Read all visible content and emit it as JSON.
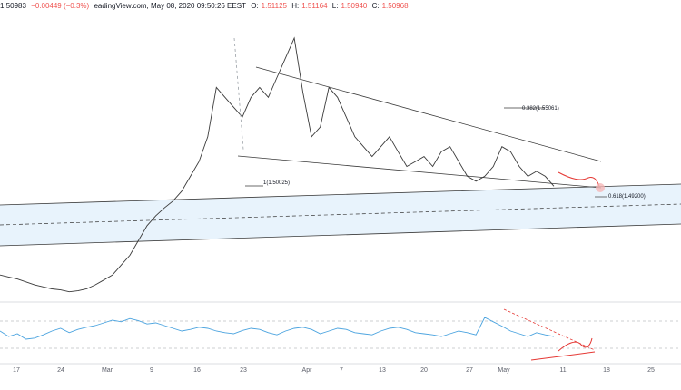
{
  "header": {
    "symbol_price": "1.50983",
    "change": "−0.00449 (−0.3%)",
    "source_time": "eadingView.com, May 08, 2020 09:50:26 EEST",
    "o_label": "O:",
    "o_value": "1.51125",
    "h_label": "H:",
    "h_value": "1.51164",
    "l_label": "L:",
    "l_value": "1.50940",
    "c_label": "C:",
    "c_value": "1.50968"
  },
  "annotations": {
    "fib_top": "0.382(1.55061)",
    "fib_level_one": "1(1.50025)",
    "fib_bottom": "0.618(1.49200)"
  },
  "x_axis": {
    "labels": [
      "17",
      "24",
      "Mar",
      "9",
      "16",
      "23",
      "Apr",
      "7",
      "13",
      "20",
      "27",
      "May",
      "11",
      "18",
      "25"
    ]
  },
  "colors": {
    "price_line": "#3a3a3a",
    "indicator_line": "#4aa3df",
    "annotation_red": "#e53935",
    "channel_fill": "#e8f3fc",
    "axis_text": "#5d606b"
  },
  "chart_data": {
    "type": "line",
    "series": [
      {
        "values": [
          1.42,
          1.418,
          1.416,
          1.413,
          1.41,
          1.408,
          1.406,
          1.405,
          1.403,
          1.404,
          1.406,
          1.41,
          1.415,
          1.42,
          1.43,
          1.44,
          1.455,
          1.47,
          1.48,
          1.488,
          1.495,
          1.505,
          1.52,
          1.535,
          1.56,
          1.61,
          1.6,
          1.59,
          1.58,
          1.6,
          1.61,
          1.6,
          1.62,
          1.64,
          1.66,
          1.605,
          1.56,
          1.57,
          1.61,
          1.6,
          1.58,
          1.56,
          1.55,
          1.54,
          1.55,
          1.56,
          1.545,
          1.53,
          1.535,
          1.54,
          1.53,
          1.545,
          1.55,
          1.535,
          1.52,
          1.515,
          1.52,
          1.53,
          1.55,
          1.545,
          1.53,
          1.52,
          1.525,
          1.52,
          1.51
        ]
      }
    ],
    "indicator": [
      55,
      45,
      50,
      40,
      42,
      48,
      55,
      60,
      52,
      58,
      62,
      65,
      70,
      75,
      72,
      78,
      74,
      68,
      70,
      65,
      60,
      55,
      58,
      62,
      60,
      55,
      52,
      50,
      56,
      60,
      58,
      52,
      48,
      55,
      60,
      62,
      58,
      50,
      55,
      60,
      58,
      52,
      50,
      48,
      55,
      60,
      62,
      58,
      52,
      50,
      48,
      45,
      50,
      55,
      52,
      48,
      80,
      72,
      64,
      55,
      50,
      45,
      52,
      48,
      45
    ]
  }
}
